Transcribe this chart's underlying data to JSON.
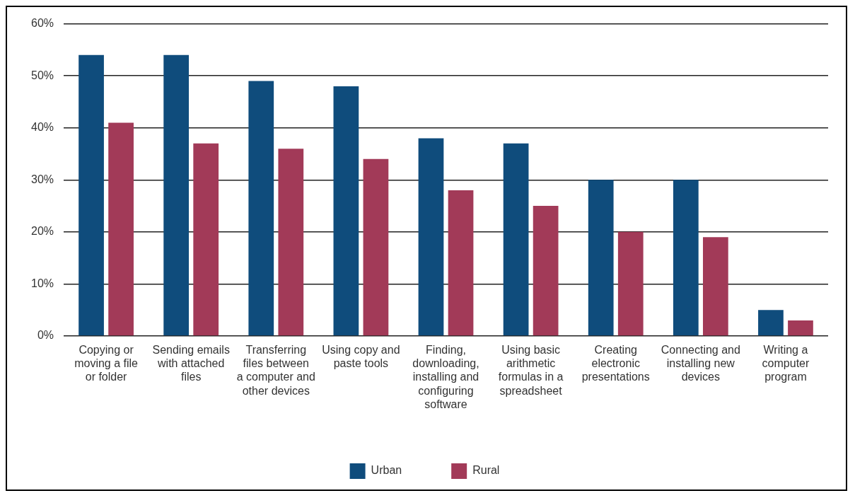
{
  "chart_data": {
    "type": "bar",
    "categories": [
      "Copying or moving a file or folder",
      "Sending emails with attached files",
      "Transferring files between a computer and other devices",
      "Using copy and paste tools",
      "Finding, downloading, installing and configuring software",
      "Using basic arithmetic formulas in a spreadsheet",
      "Creating electronic presentations",
      "Connecting and installing new devices",
      "Writing a computer program"
    ],
    "series": [
      {
        "name": "Urban",
        "color": "#0f4c7c",
        "values": [
          54,
          54,
          49,
          48,
          38,
          37,
          30,
          30,
          5
        ]
      },
      {
        "name": "Rural",
        "color": "#a23a58",
        "values": [
          41,
          37,
          36,
          34,
          28,
          25,
          20,
          19,
          3
        ]
      }
    ],
    "ylim": [
      0,
      60
    ],
    "yticks": [
      {
        "value": 0,
        "label": "0%"
      },
      {
        "value": 10,
        "label": "10%"
      },
      {
        "value": 20,
        "label": "20%"
      },
      {
        "value": 30,
        "label": "30%"
      },
      {
        "value": 40,
        "label": "40%"
      },
      {
        "value": 50,
        "label": "50%"
      },
      {
        "value": 60,
        "label": "60%"
      }
    ],
    "grid": "y",
    "legend": "bottom"
  }
}
